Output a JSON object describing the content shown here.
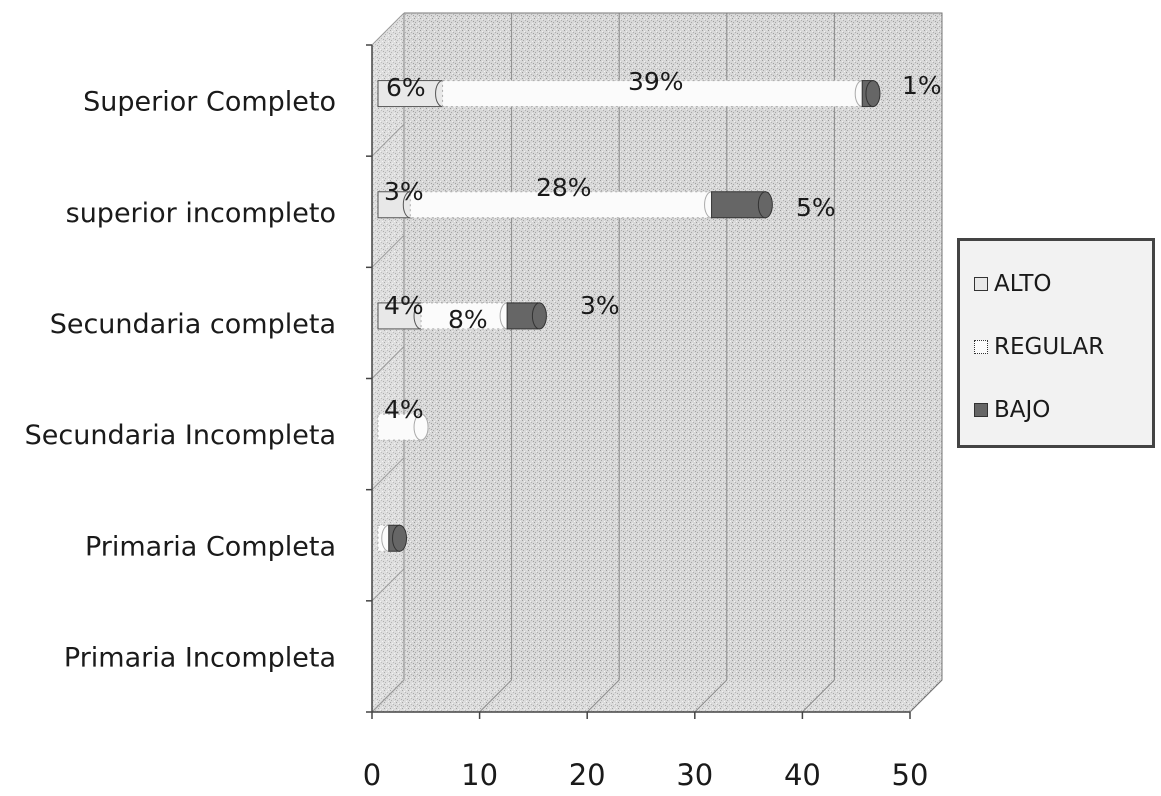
{
  "chart_data": {
    "type": "bar",
    "orientation": "horizontal",
    "stacked": true,
    "categories": [
      "Superior Completo",
      "superior incompleto",
      "Secundaria completa",
      "Secundaria Incompleta",
      "Primaria Completa",
      "Primaria Incompleta"
    ],
    "series": [
      {
        "name": "ALTO",
        "values": [
          6,
          3,
          4,
          0,
          0,
          0
        ],
        "labels": [
          "6%",
          "3%",
          "4%",
          "",
          "",
          ""
        ]
      },
      {
        "name": "REGULAR",
        "values": [
          39,
          28,
          8,
          4,
          1,
          0
        ],
        "labels": [
          "39%",
          "28%",
          "8%",
          "4%",
          "",
          ""
        ]
      },
      {
        "name": "BAJO",
        "values": [
          1,
          5,
          3,
          0,
          1,
          0
        ],
        "labels": [
          "1%",
          "5%",
          "3%",
          "",
          "",
          ""
        ]
      }
    ],
    "xticks": [
      "0",
      "10",
      "20",
      "30",
      "40",
      "50"
    ],
    "xlim": [
      0,
      50
    ],
    "legend_position": "right",
    "grid": true
  },
  "colors": {
    "ALTO": "#e8e8e8",
    "REGULAR": "#fbfbfb",
    "BAJO": "#666666",
    "plot_background": "#d4d4d4"
  }
}
